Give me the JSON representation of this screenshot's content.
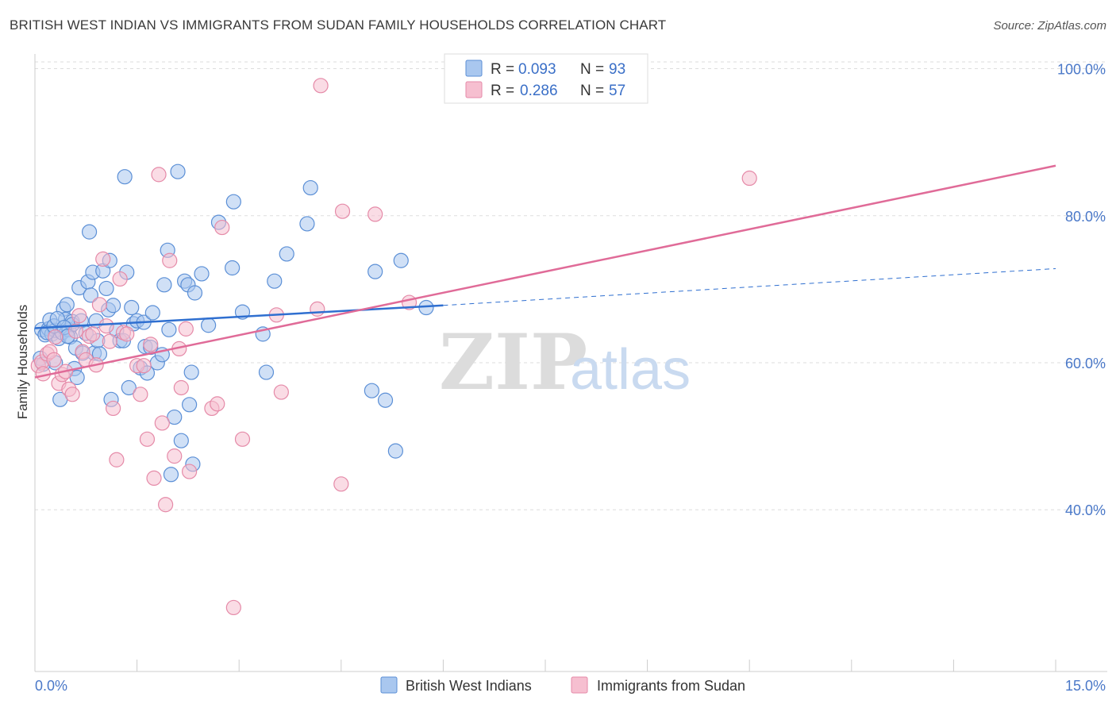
{
  "title": "BRITISH WEST INDIAN VS IMMIGRANTS FROM SUDAN FAMILY HOUSEHOLDS CORRELATION CHART",
  "source": "Source: ZipAtlas.com",
  "watermark": {
    "zip": "ZIP",
    "atlas": "atlas"
  },
  "legend": {
    "r_label": "R =",
    "n_label": "N =",
    "rows": [
      {
        "r": "0.093",
        "n": "93"
      },
      {
        "r": "0.286",
        "n": "57"
      }
    ]
  },
  "colors": {
    "blue_fill": "#a9c7ef",
    "blue_stroke": "#5b8fd6",
    "blue_line": "#2f6fd0",
    "pink_fill": "#f6bfd0",
    "pink_stroke": "#e58aa8",
    "pink_line": "#e06b98",
    "axis_label": "#4a78c8",
    "grid": "#dddddd"
  },
  "chart_data": {
    "type": "scatter",
    "xlabel": "",
    "ylabel": "Family Households",
    "x_tick_labels": [
      "0.0%",
      "15.0%"
    ],
    "y_tick_labels": [
      "100.0%",
      "80.0%",
      "60.0%",
      "40.0%"
    ],
    "xlim": [
      0,
      15
    ],
    "ylim": [
      18,
      102
    ],
    "y_ticks": [
      100,
      80,
      60,
      40
    ],
    "grid": true,
    "legend_position": "top-center",
    "series": [
      {
        "name": "British West Indians",
        "color": "#a9c7ef",
        "trend": {
          "x1": 0,
          "y1": 64.7,
          "x2": 6.0,
          "y2": 67.8,
          "x_dash_end": 15.0,
          "y_dash_end": 72.8
        },
        "points": [
          [
            0.1,
            64.5
          ],
          [
            0.15,
            63.8
          ],
          [
            0.2,
            64.6
          ],
          [
            0.22,
            65.8
          ],
          [
            0.25,
            63.9
          ],
          [
            0.3,
            64.4
          ],
          [
            0.3,
            60.0
          ],
          [
            0.35,
            63.3
          ],
          [
            0.37,
            55.0
          ],
          [
            0.4,
            64.1
          ],
          [
            0.42,
            67.3
          ],
          [
            0.45,
            65.9
          ],
          [
            0.47,
            67.9
          ],
          [
            0.5,
            64.5
          ],
          [
            0.52,
            63.5
          ],
          [
            0.55,
            65.6
          ],
          [
            0.55,
            65.2
          ],
          [
            0.58,
            59.2
          ],
          [
            0.6,
            62.0
          ],
          [
            0.62,
            58.0
          ],
          [
            0.65,
            70.2
          ],
          [
            0.68,
            65.7
          ],
          [
            0.7,
            61.3
          ],
          [
            0.75,
            64.0
          ],
          [
            0.78,
            71.0
          ],
          [
            0.8,
            77.8
          ],
          [
            0.82,
            69.2
          ],
          [
            0.85,
            72.3
          ],
          [
            0.87,
            61.3
          ],
          [
            0.9,
            65.7
          ],
          [
            0.92,
            63.0
          ],
          [
            0.95,
            61.2
          ],
          [
            1.0,
            72.5
          ],
          [
            1.05,
            70.1
          ],
          [
            1.08,
            67.2
          ],
          [
            1.1,
            73.9
          ],
          [
            1.12,
            55.0
          ],
          [
            1.15,
            67.8
          ],
          [
            1.2,
            64.4
          ],
          [
            1.25,
            63.0
          ],
          [
            1.3,
            63.0
          ],
          [
            1.32,
            85.3
          ],
          [
            1.35,
            72.3
          ],
          [
            1.38,
            56.6
          ],
          [
            1.42,
            67.5
          ],
          [
            1.45,
            65.3
          ],
          [
            1.5,
            65.7
          ],
          [
            1.55,
            59.3
          ],
          [
            1.6,
            65.5
          ],
          [
            1.62,
            62.2
          ],
          [
            1.65,
            58.6
          ],
          [
            1.7,
            62.1
          ],
          [
            1.73,
            66.8
          ],
          [
            1.8,
            60.0
          ],
          [
            1.87,
            61.1
          ],
          [
            1.9,
            70.6
          ],
          [
            1.95,
            75.3
          ],
          [
            1.97,
            64.5
          ],
          [
            2.0,
            44.8
          ],
          [
            2.05,
            52.6
          ],
          [
            2.1,
            86.0
          ],
          [
            2.15,
            49.4
          ],
          [
            2.2,
            71.1
          ],
          [
            2.25,
            70.6
          ],
          [
            2.27,
            54.3
          ],
          [
            2.3,
            58.7
          ],
          [
            2.32,
            46.2
          ],
          [
            2.35,
            69.5
          ],
          [
            2.45,
            72.1
          ],
          [
            2.55,
            65.1
          ],
          [
            2.7,
            79.1
          ],
          [
            2.9,
            72.9
          ],
          [
            2.92,
            81.9
          ],
          [
            3.05,
            66.9
          ],
          [
            3.35,
            63.9
          ],
          [
            3.4,
            58.7
          ],
          [
            3.52,
            71.1
          ],
          [
            3.7,
            74.8
          ],
          [
            4.0,
            78.9
          ],
          [
            4.05,
            83.8
          ],
          [
            4.95,
            56.2
          ],
          [
            5.0,
            72.4
          ],
          [
            5.15,
            54.9
          ],
          [
            5.3,
            48.0
          ],
          [
            5.38,
            73.9
          ],
          [
            5.75,
            67.5
          ],
          [
            0.08,
            60.6
          ],
          [
            0.12,
            59.8
          ],
          [
            0.18,
            64.1
          ],
          [
            0.28,
            65.0
          ],
          [
            0.33,
            66.0
          ],
          [
            0.43,
            64.8
          ],
          [
            0.48,
            63.6
          ]
        ]
      },
      {
        "name": "Immigrants from Sudan",
        "color": "#f6bfd0",
        "trend": {
          "x1": 0,
          "y1": 58.0,
          "x2": 15.0,
          "y2": 86.8
        },
        "points": [
          [
            0.05,
            59.6
          ],
          [
            0.1,
            60.1
          ],
          [
            0.12,
            58.5
          ],
          [
            0.18,
            61.2
          ],
          [
            0.22,
            61.5
          ],
          [
            0.28,
            60.4
          ],
          [
            0.3,
            63.5
          ],
          [
            0.35,
            57.2
          ],
          [
            0.4,
            58.4
          ],
          [
            0.45,
            58.8
          ],
          [
            0.5,
            56.4
          ],
          [
            0.55,
            55.7
          ],
          [
            0.6,
            64.3
          ],
          [
            0.65,
            66.4
          ],
          [
            0.7,
            61.5
          ],
          [
            0.75,
            60.4
          ],
          [
            0.8,
            63.6
          ],
          [
            0.85,
            63.9
          ],
          [
            0.9,
            59.7
          ],
          [
            0.95,
            67.9
          ],
          [
            1.0,
            74.1
          ],
          [
            1.05,
            65.0
          ],
          [
            1.1,
            62.9
          ],
          [
            1.15,
            53.8
          ],
          [
            1.2,
            46.8
          ],
          [
            1.25,
            71.4
          ],
          [
            1.3,
            64.1
          ],
          [
            1.35,
            63.9
          ],
          [
            1.5,
            59.6
          ],
          [
            1.55,
            55.7
          ],
          [
            1.6,
            59.6
          ],
          [
            1.65,
            49.6
          ],
          [
            1.7,
            62.5
          ],
          [
            1.75,
            44.3
          ],
          [
            1.82,
            85.6
          ],
          [
            1.87,
            51.8
          ],
          [
            1.92,
            40.7
          ],
          [
            1.98,
            73.9
          ],
          [
            2.05,
            47.3
          ],
          [
            2.12,
            61.9
          ],
          [
            2.15,
            56.6
          ],
          [
            2.22,
            64.6
          ],
          [
            2.27,
            45.2
          ],
          [
            2.6,
            53.8
          ],
          [
            2.68,
            54.4
          ],
          [
            2.75,
            78.4
          ],
          [
            2.92,
            26.7
          ],
          [
            3.05,
            49.6
          ],
          [
            3.55,
            66.5
          ],
          [
            3.62,
            56.0
          ],
          [
            4.15,
            67.3
          ],
          [
            4.2,
            97.7
          ],
          [
            4.5,
            43.5
          ],
          [
            4.52,
            80.6
          ],
          [
            5.0,
            80.2
          ],
          [
            5.5,
            68.2
          ],
          [
            10.5,
            85.1
          ]
        ]
      }
    ]
  }
}
